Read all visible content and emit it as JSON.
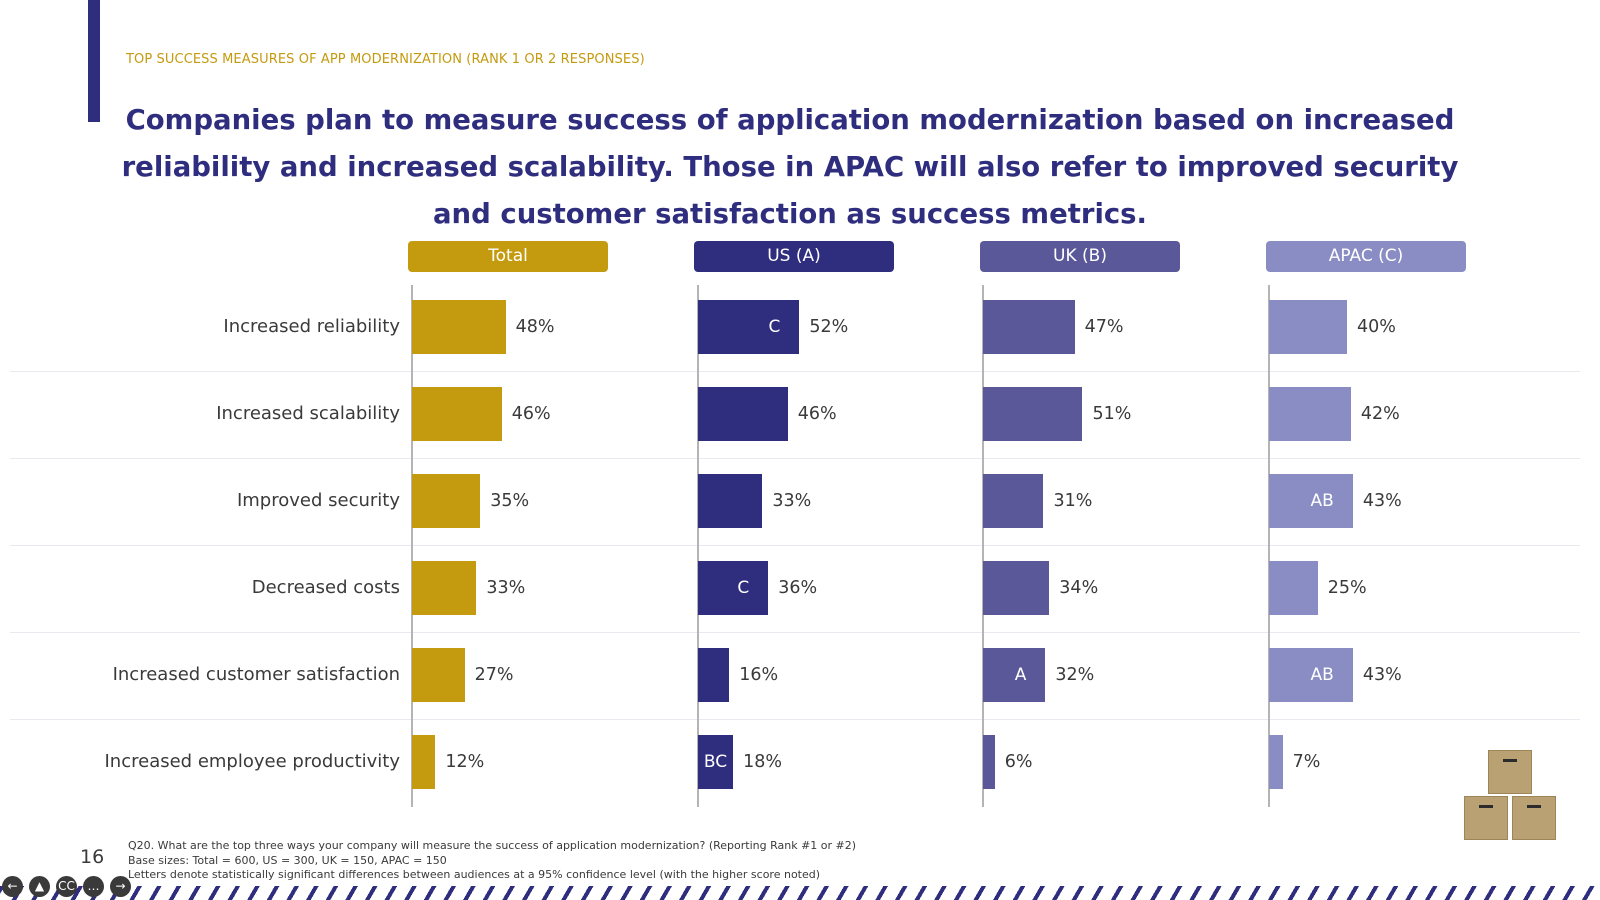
{
  "eyebrow": "TOP SUCCESS MEASURES OF APP MODERNIZATION (RANK 1 OR 2 RESPONSES)",
  "headline": "Companies plan to measure success of application modernization based on increased reliability and increased scalability. Those in APAC will also refer to improved security and customer satisfaction as success metrics.",
  "colors": {
    "total": "#c49a0f",
    "us": "#2f2d7e",
    "uk": "#5a5898",
    "apac": "#8a8dc4",
    "accent": "#2f2d7e"
  },
  "chart_data": {
    "type": "bar",
    "orientation": "horizontal",
    "unit": "%",
    "categories": [
      "Increased reliability",
      "Increased scalability",
      "Improved security",
      "Decreased costs",
      "Increased customer satisfaction",
      "Increased employee productivity"
    ],
    "series": [
      {
        "name": "Total",
        "values": [
          48,
          46,
          35,
          33,
          27,
          12
        ],
        "sig": [
          "",
          "",
          "",
          "",
          "",
          ""
        ]
      },
      {
        "name": "US (A)",
        "values": [
          52,
          46,
          33,
          36,
          16,
          18
        ],
        "sig": [
          "C",
          "",
          "",
          "C",
          "",
          "BC"
        ]
      },
      {
        "name": "UK (B)",
        "values": [
          47,
          51,
          31,
          34,
          32,
          6
        ],
        "sig": [
          "",
          "",
          "",
          "",
          "A",
          ""
        ]
      },
      {
        "name": "APAC (C)",
        "values": [
          40,
          42,
          43,
          25,
          43,
          7
        ],
        "sig": [
          "",
          "",
          "AB",
          "",
          "AB",
          ""
        ]
      }
    ]
  },
  "footnotes": {
    "question": "Q20. What are the top three ways your company will measure the success of application modernization? (Reporting Rank #1 or #2)",
    "base": "Base sizes: Total = 600, US = 300, UK = 150, APAC = 150",
    "sig_note": "Letters denote statistically significant differences between audiences at a 95% confidence level (with the higher score noted)"
  },
  "page_number": "16",
  "controls": [
    {
      "name": "previous-slide",
      "glyph": "←"
    },
    {
      "name": "accessibility",
      "glyph": "▲"
    },
    {
      "name": "closed-captions",
      "glyph": "CC"
    },
    {
      "name": "more-options",
      "glyph": "…"
    },
    {
      "name": "next-slide",
      "glyph": "→"
    }
  ]
}
